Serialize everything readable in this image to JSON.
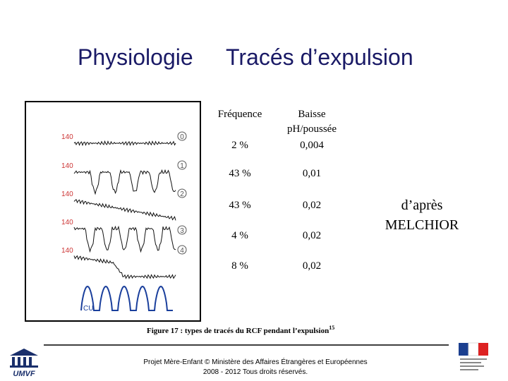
{
  "title": {
    "part1": "Physiologie",
    "part2": "Tracés d’expulsion"
  },
  "figure": {
    "axis_labels": [
      "140",
      "140",
      "140",
      "140",
      "140"
    ],
    "trace_numbers": [
      "0",
      "1",
      "2",
      "3",
      "4"
    ],
    "cu_label": "CU",
    "headers": [
      "Fréquence",
      "Baisse p H/poussée"
    ],
    "rows": [
      [
        "2 %",
        "0,004"
      ],
      [
        "43 %",
        "0,01"
      ],
      [
        "43 %",
        "0,02"
      ],
      [
        "4 %",
        "0,02"
      ],
      [
        "8 %",
        "0,02"
      ]
    ],
    "caption": "Figure 17 : types de tracés du RCF pendant l’expulsion",
    "caption_ref": "15"
  },
  "note": [
    "d’après",
    "MELCHIOR"
  ],
  "footer": {
    "line1": "Projet Mère-Enfant © Ministère des Affaires Étrangères et Européennes",
    "line2": "2008 - 2012 Tous droits réservés."
  },
  "logo": "UMVF"
}
